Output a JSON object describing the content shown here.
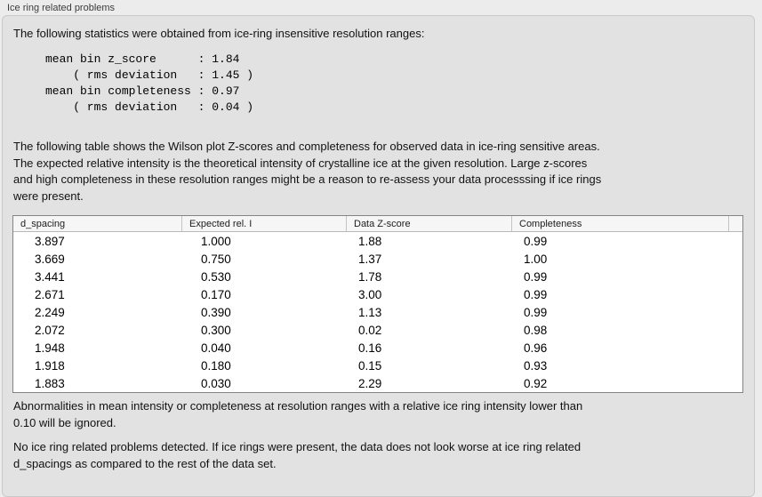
{
  "panel": {
    "title": "Ice ring related problems"
  },
  "intro": {
    "text": "The following statistics were obtained from ice-ring insensitive resolution ranges:"
  },
  "stats_block": "mean bin z_score      : 1.84\n    ( rms deviation   : 1.45 )\nmean bin completeness : 0.97\n    ( rms deviation   : 0.04 )",
  "stats": {
    "mean_bin_z_score": "1.84",
    "z_score_rms_deviation": "1.45",
    "mean_bin_completeness": "0.97",
    "completeness_rms_deviation": "0.04"
  },
  "description": {
    "text": "The following table shows the Wilson plot Z-scores and completeness for observed data in ice-ring sensitive areas.\nThe expected relative intensity is the theoretical intensity of crystalline ice at the given resolution. Large z-scores\nand high completeness in these resolution ranges might be a reason to re-assess your data processsing if ice rings\nwere present."
  },
  "table": {
    "columns": [
      "d_spacing",
      "Expected rel. I",
      "Data Z-score",
      "Completeness"
    ],
    "rows": [
      [
        "3.897",
        "1.000",
        "1.88",
        "0.99"
      ],
      [
        "3.669",
        "0.750",
        "1.37",
        "1.00"
      ],
      [
        "3.441",
        "0.530",
        "1.78",
        "0.99"
      ],
      [
        "2.671",
        "0.170",
        "3.00",
        "0.99"
      ],
      [
        "2.249",
        "0.390",
        "1.13",
        "0.99"
      ],
      [
        "2.072",
        "0.300",
        "0.02",
        "0.98"
      ],
      [
        "1.948",
        "0.040",
        "0.16",
        "0.96"
      ],
      [
        "1.918",
        "0.180",
        "0.15",
        "0.93"
      ],
      [
        "1.883",
        "0.030",
        "2.29",
        "0.92"
      ]
    ]
  },
  "note": {
    "text": "Abnormalities in mean intensity or completeness at resolution ranges with a relative ice ring intensity lower than\n0.10 will be ignored."
  },
  "conclusion": {
    "text": "No ice ring related problems detected. If ice rings were present, the data does not look worse at ice ring related\nd_spacings as compared to the rest of the data set."
  },
  "colors": {
    "page_background": "#ececec",
    "panel_background": "#e2e2e2",
    "table_background": "#ffffff",
    "table_border": "#848484",
    "header_background": "#f6f6f6"
  }
}
